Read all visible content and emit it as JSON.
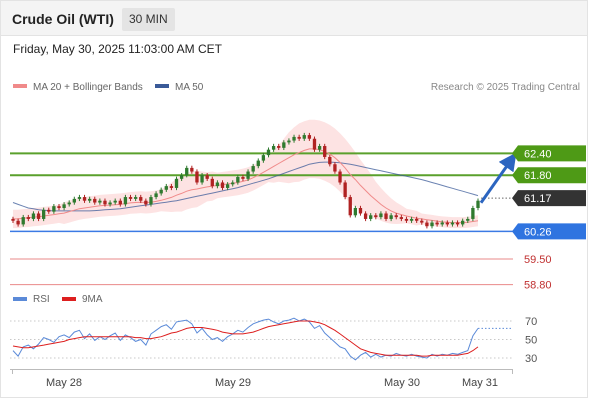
{
  "header": {
    "title": "Crude Oil (WTI)",
    "timeframe": "30 MIN"
  },
  "datetime": "Friday, May 30, 2025 11:03:00 AM CET",
  "credit": "Research © 2025 Trading Central",
  "colors": {
    "ma20": "#f08a8a",
    "bollinger_fill": "#fde3e3",
    "ma50": "#3a5a98",
    "resistance": "#5aa02c",
    "support_primary": "#3b7ae4",
    "support_secondary": "#e05858",
    "current": "#333333",
    "candle_up": "#2f7a2f",
    "candle_down": "#b02222",
    "rsi": "#5b8ad8",
    "rsi_ma": "#dd1f1f",
    "arrow": "#2c65c0"
  },
  "chart_data": [
    {
      "type": "line",
      "subtype": "candlestick",
      "legend": [
        "MA 20 + Bollinger Bands",
        "MA 50"
      ],
      "x_ticks": [
        "May 28",
        "May 29",
        "May 30",
        "May 31"
      ],
      "ylim": [
        58.5,
        63.3
      ],
      "current_price": 61.17,
      "levels": [
        {
          "label": "62.40",
          "value": 62.4,
          "kind": "resistance"
        },
        {
          "label": "61.80",
          "value": 61.8,
          "kind": "resistance"
        },
        {
          "label": "61.17",
          "value": 61.17,
          "kind": "current"
        },
        {
          "label": "60.26",
          "value": 60.26,
          "kind": "support_primary"
        },
        {
          "label": "59.50",
          "value": 59.5,
          "kind": "support_secondary"
        },
        {
          "label": "58.80",
          "value": 58.8,
          "kind": "support_secondary"
        }
      ],
      "forecast_arrow": {
        "from": 61.1,
        "to": 62.4
      },
      "close": [
        60.55,
        60.45,
        60.65,
        60.6,
        60.75,
        60.6,
        60.85,
        60.8,
        60.95,
        60.9,
        61.0,
        61.05,
        61.15,
        61.2,
        61.1,
        61.15,
        61.05,
        61.1,
        61.0,
        61.05,
        61.1,
        61.0,
        61.2,
        61.15,
        61.2,
        61.1,
        61.0,
        61.2,
        61.3,
        61.4,
        61.5,
        61.45,
        61.7,
        61.8,
        62.0,
        61.9,
        61.6,
        61.8,
        61.7,
        61.5,
        61.6,
        61.45,
        61.55,
        61.6,
        61.75,
        61.7,
        61.9,
        62.05,
        62.2,
        62.35,
        62.5,
        62.6,
        62.55,
        62.7,
        62.75,
        62.85,
        62.8,
        62.9,
        62.8,
        62.5,
        62.6,
        62.3,
        62.1,
        61.9,
        61.6,
        61.2,
        60.7,
        60.9,
        60.75,
        60.6,
        60.7,
        60.65,
        60.75,
        60.6,
        60.7,
        60.65,
        60.6,
        60.55,
        60.6,
        60.55,
        60.5,
        60.4,
        60.5,
        60.45,
        60.5,
        60.45,
        60.5,
        60.45,
        60.55,
        60.6,
        60.9,
        61.1
      ],
      "ma20": [
        60.6,
        60.6,
        60.62,
        60.63,
        60.65,
        60.66,
        60.68,
        60.7,
        60.72,
        60.74,
        60.76,
        60.8,
        60.84,
        60.88,
        60.9,
        60.92,
        60.94,
        60.96,
        60.97,
        60.98,
        60.99,
        61.0,
        61.02,
        61.04,
        61.05,
        61.06,
        61.05,
        61.06,
        61.08,
        61.11,
        61.15,
        61.19,
        61.25,
        61.3,
        61.36,
        61.4,
        61.42,
        61.45,
        61.48,
        61.5,
        61.52,
        61.54,
        61.56,
        61.58,
        61.6,
        61.63,
        61.67,
        61.73,
        61.8,
        61.88,
        61.96,
        62.04,
        62.12,
        62.2,
        62.28,
        62.36,
        62.42,
        62.48,
        62.52,
        62.52,
        62.5,
        62.45,
        62.38,
        62.28,
        62.15,
        62.0,
        61.82,
        61.68,
        61.52,
        61.38,
        61.24,
        61.12,
        61.0,
        60.9,
        60.82,
        60.76,
        60.72,
        60.68,
        60.65,
        60.62,
        60.6,
        60.58,
        60.56,
        60.54,
        60.52,
        60.51,
        60.5,
        60.5,
        60.5,
        60.51,
        60.53,
        60.55
      ],
      "bb_width": [
        0.25,
        0.25,
        0.25,
        0.25,
        0.25,
        0.25,
        0.25,
        0.25,
        0.25,
        0.25,
        0.3,
        0.3,
        0.3,
        0.3,
        0.3,
        0.3,
        0.3,
        0.3,
        0.3,
        0.3,
        0.3,
        0.3,
        0.3,
        0.3,
        0.3,
        0.3,
        0.3,
        0.3,
        0.3,
        0.3,
        0.35,
        0.4,
        0.45,
        0.5,
        0.5,
        0.5,
        0.5,
        0.45,
        0.4,
        0.4,
        0.35,
        0.35,
        0.35,
        0.35,
        0.35,
        0.35,
        0.35,
        0.35,
        0.35,
        0.35,
        0.35,
        0.45,
        0.5,
        0.6,
        0.7,
        0.75,
        0.8,
        0.8,
        0.8,
        0.8,
        0.8,
        0.8,
        0.8,
        0.8,
        0.8,
        0.8,
        0.8,
        0.75,
        0.7,
        0.65,
        0.6,
        0.5,
        0.45,
        0.4,
        0.35,
        0.3,
        0.25,
        0.2,
        0.2,
        0.2,
        0.15,
        0.15,
        0.15,
        0.15,
        0.15,
        0.15,
        0.15,
        0.15,
        0.15,
        0.15,
        0.15,
        0.15
      ],
      "ma50": [
        61.05,
        61.0,
        60.95,
        60.9,
        60.88,
        60.85,
        60.84,
        60.83,
        60.82,
        60.82,
        60.82,
        60.82,
        60.82,
        60.82,
        60.82,
        60.82,
        60.83,
        60.84,
        60.85,
        60.86,
        60.87,
        60.88,
        60.9,
        60.92,
        60.94,
        60.96,
        60.98,
        61.0,
        61.02,
        61.04,
        61.06,
        61.08,
        61.1,
        61.13,
        61.16,
        61.19,
        61.22,
        61.25,
        61.28,
        61.31,
        61.34,
        61.37,
        61.4,
        61.43,
        61.46,
        61.5,
        61.54,
        61.58,
        61.62,
        61.66,
        61.7,
        61.75,
        61.8,
        61.85,
        61.9,
        61.95,
        62.0,
        62.05,
        62.1,
        62.13,
        62.15,
        62.16,
        62.16,
        62.15,
        62.14,
        62.12,
        62.1,
        62.07,
        62.04,
        62.01,
        61.98,
        61.95,
        61.92,
        61.89,
        61.86,
        61.83,
        61.8,
        61.77,
        61.74,
        61.71,
        61.68,
        61.64,
        61.6,
        61.56,
        61.52,
        61.48,
        61.44,
        61.4,
        61.36,
        61.32,
        61.28,
        61.24
      ]
    },
    {
      "type": "line",
      "legend": [
        "RSI",
        "9MA"
      ],
      "y_ticks": [
        70,
        50,
        30
      ],
      "ylim": [
        20,
        80
      ],
      "rsi": [
        38,
        32,
        42,
        44,
        40,
        45,
        52,
        50,
        47,
        53,
        55,
        52,
        58,
        60,
        51,
        56,
        49,
        53,
        50,
        54,
        57,
        49,
        55,
        52,
        48,
        50,
        44,
        56,
        60,
        64,
        66,
        61,
        69,
        70,
        71,
        67,
        57,
        62,
        55,
        50,
        52,
        48,
        53,
        56,
        60,
        58,
        63,
        67,
        69,
        71,
        72,
        69,
        67,
        70,
        71,
        73,
        70,
        72,
        69,
        62,
        65,
        57,
        52,
        47,
        42,
        40,
        32,
        28,
        33,
        36,
        31,
        34,
        31,
        33,
        32,
        35,
        33,
        32,
        34,
        32,
        31,
        30,
        34,
        32,
        34,
        33,
        35,
        34,
        36,
        38,
        54,
        62
      ],
      "rsi_ma": [
        43,
        42,
        41,
        41,
        42,
        43,
        44,
        45,
        46,
        47,
        48,
        50,
        51,
        52,
        53,
        53,
        53,
        53,
        53,
        53,
        53,
        53,
        53,
        53,
        52,
        52,
        51,
        51,
        52,
        53,
        55,
        57,
        58,
        60,
        62,
        63,
        63,
        63,
        62,
        61,
        60,
        58,
        57,
        56,
        56,
        56,
        57,
        58,
        60,
        62,
        64,
        65,
        66,
        67,
        68,
        69,
        70,
        70,
        70,
        69,
        68,
        66,
        63,
        60,
        56,
        52,
        48,
        44,
        40,
        38,
        36,
        35,
        34,
        33,
        33,
        33,
        33,
        33,
        33,
        33,
        32,
        32,
        33,
        33,
        33,
        33,
        33,
        33,
        34,
        35,
        38,
        42
      ]
    }
  ]
}
